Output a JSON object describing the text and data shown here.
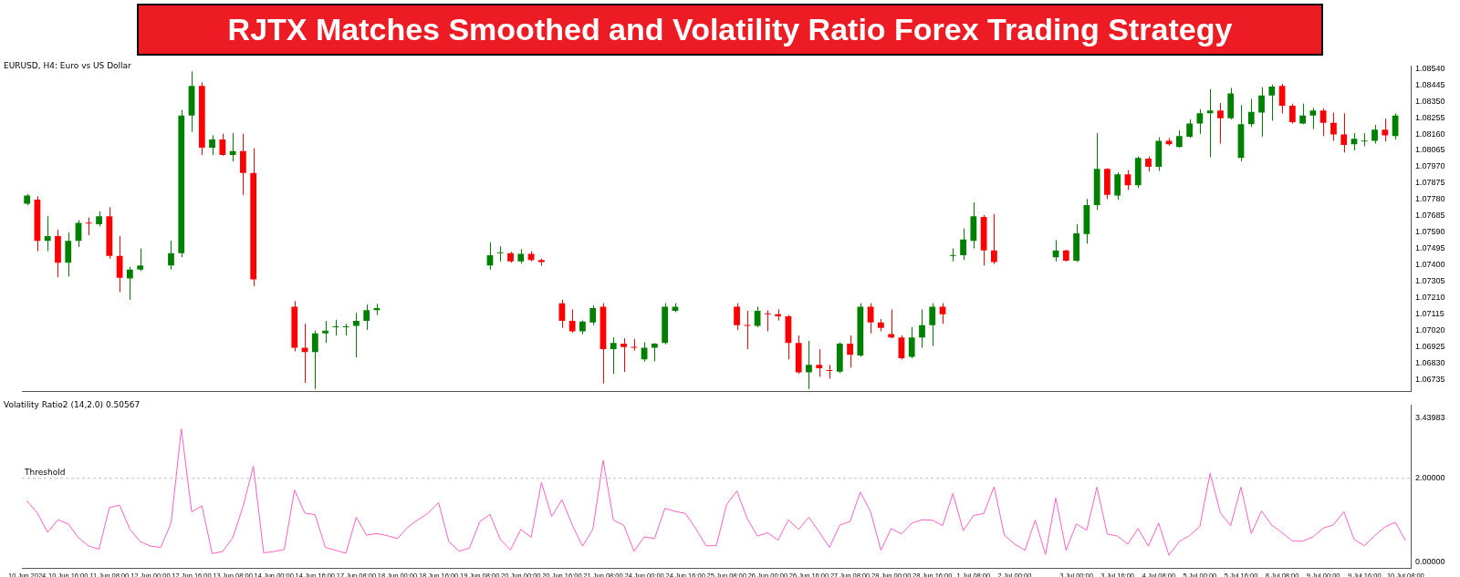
{
  "chart_data": [
    {
      "type": "candlestick",
      "title": "RJTX Matches Smoothed and Volatility Ratio Forex Trading Strategy",
      "subtitle": "EURUSD, H4: Euro vs US Dollar",
      "categories": [
        null,
        null,
        null,
        null,
        null,
        null,
        null,
        null,
        null,
        null,
        null,
        null,
        null,
        null,
        null,
        null,
        null,
        null,
        null,
        null,
        null,
        null,
        null,
        null,
        null,
        null,
        null,
        null,
        null,
        null,
        null,
        null,
        null,
        null,
        null,
        null,
        null,
        null,
        null,
        null,
        null,
        null,
        null,
        null,
        null,
        null,
        null,
        null,
        null,
        null,
        null,
        null,
        null,
        null,
        null,
        null,
        null,
        null,
        null,
        null,
        null,
        null,
        null,
        null,
        null,
        null,
        null,
        null,
        null,
        null,
        null,
        null,
        null,
        null,
        null,
        null,
        null,
        null,
        null,
        null,
        null,
        null,
        null,
        null,
        null,
        null,
        null,
        null,
        null,
        null,
        null,
        null,
        null,
        null,
        null,
        null,
        null,
        null,
        null,
        null,
        null,
        null,
        null,
        null,
        null,
        null,
        null,
        null,
        null,
        null,
        null,
        null,
        null,
        null,
        null,
        null,
        null,
        null,
        null,
        null,
        null,
        null,
        null,
        null,
        null,
        null,
        null,
        null,
        null,
        null,
        null,
        null,
        null,
        null,
        null
      ],
      "ohlc": [
        [
          1.07755,
          1.07811,
          1.07747,
          1.07803
        ],
        [
          1.07779,
          1.07799,
          1.0748,
          1.0754
        ],
        [
          1.0754,
          1.07683,
          1.0748,
          1.07568
        ],
        [
          1.07568,
          1.07604,
          1.07329,
          1.07413
        ],
        [
          1.07413,
          1.07588,
          1.07333,
          1.0754
        ],
        [
          1.0754,
          1.0766,
          1.07504,
          1.07644
        ],
        [
          1.07644,
          1.07675,
          1.07572,
          1.0764
        ],
        [
          1.07636,
          1.07711,
          1.07624,
          1.07683
        ],
        [
          1.07683,
          1.07735,
          1.07437,
          1.07452
        ],
        [
          1.07452,
          1.07568,
          1.07242,
          1.07325
        ],
        [
          1.07321,
          1.07389,
          1.07198,
          1.07373
        ],
        [
          1.07373,
          1.07496,
          1.07365,
          1.07397
        ],
        null,
        null,
        [
          1.07397,
          1.0754,
          1.07373,
          1.07468
        ],
        [
          1.07468,
          1.083,
          1.07445,
          1.08268
        ],
        [
          1.08268,
          1.08523,
          1.08173,
          1.0844
        ],
        [
          1.0844,
          1.08459,
          1.08038,
          1.08081
        ],
        [
          1.08081,
          1.08153,
          1.08038,
          1.08129
        ],
        [
          1.08129,
          1.08161,
          1.08034,
          1.08038
        ],
        [
          1.08038,
          1.08165,
          1.08002,
          1.08061
        ],
        [
          1.08061,
          1.08161,
          1.07807,
          1.07934
        ],
        [
          1.07934,
          1.08077,
          1.07277,
          1.07317
        ],
        null,
        null,
        null,
        [
          1.07158,
          1.0719,
          1.06899,
          1.06919
        ],
        [
          1.06919,
          1.07059,
          1.06716,
          1.06895
        ],
        [
          1.06895,
          1.07019,
          1.0668,
          1.07003
        ],
        [
          1.07003,
          1.07075,
          1.06947,
          1.07019
        ],
        [
          1.07039,
          1.07082,
          1.06991,
          1.07043
        ],
        [
          1.07039,
          1.07059,
          1.06991,
          1.07043
        ],
        [
          1.07047,
          1.07122,
          1.06863,
          1.07075
        ],
        [
          1.07075,
          1.0717,
          1.07023,
          1.07138
        ],
        [
          1.07138,
          1.07174,
          1.0711,
          1.0715
        ],
        null,
        null,
        null,
        null,
        null,
        null,
        null,
        null,
        null,
        null,
        [
          1.07397,
          1.07532,
          1.07373,
          1.07456
        ],
        [
          1.07468,
          1.07508,
          1.07421,
          1.07472
        ],
        [
          1.07468,
          1.07476,
          1.07413,
          1.07421
        ],
        [
          1.07421,
          1.07492,
          1.07409,
          1.07464
        ],
        [
          1.07464,
          1.0748,
          1.07421,
          1.07429
        ],
        [
          1.07429,
          1.07437,
          1.07397,
          1.07417
        ],
        null,
        [
          1.07178,
          1.07198,
          1.07035,
          1.07075
        ],
        [
          1.07075,
          1.07142,
          1.07007,
          1.07015
        ],
        [
          1.07015,
          1.07078,
          1.06999,
          1.07071
        ],
        [
          1.07066,
          1.07166,
          1.07051,
          1.0715
        ],
        [
          1.07158,
          1.07178,
          1.06712,
          1.06911
        ],
        [
          1.06911,
          1.06979,
          1.06768,
          1.06947
        ],
        [
          1.06943,
          1.06975,
          1.0678,
          1.06923
        ],
        [
          1.06923,
          1.06971,
          1.06903,
          1.06919
        ],
        [
          1.06852,
          1.06951,
          1.0684,
          1.06919
        ],
        [
          1.06919,
          1.06947,
          1.0684,
          1.06943
        ],
        [
          1.06947,
          1.07178,
          1.06939,
          1.07158
        ],
        [
          1.07134,
          1.07178,
          1.07126,
          1.07158
        ],
        null,
        null,
        null,
        null,
        null,
        [
          1.07158,
          1.07178,
          1.07023,
          1.07051
        ],
        [
          1.07051,
          1.07134,
          1.06911,
          1.07047
        ],
        [
          1.07047,
          1.07158,
          1.07039,
          1.07134
        ],
        [
          1.07118,
          1.07138,
          1.07015,
          1.07114
        ],
        [
          1.07114,
          1.07142,
          1.07078,
          1.07102
        ],
        [
          1.07102,
          1.0711,
          1.06852,
          1.06947
        ],
        [
          1.06947,
          1.06991,
          1.06768,
          1.06776
        ],
        [
          1.06776,
          1.06959,
          1.0668,
          1.0682
        ],
        [
          1.0682,
          1.06911,
          1.06752,
          1.068
        ],
        [
          1.06788,
          1.0682,
          1.0674,
          1.06784
        ],
        [
          1.0678,
          1.06951,
          1.06772,
          1.06943
        ],
        [
          1.06943,
          1.06991,
          1.06804,
          1.06879
        ],
        [
          1.06875,
          1.07178,
          1.06867,
          1.07158
        ],
        [
          1.07158,
          1.07178,
          1.07003,
          1.07066
        ],
        [
          1.07066,
          1.07086,
          1.07015,
          1.07035
        ],
        [
          1.06999,
          1.07142,
          1.06975,
          1.06979
        ],
        [
          1.06979,
          1.06991,
          1.06852,
          1.06859
        ],
        [
          1.06867,
          1.07039,
          1.06859,
          1.06979
        ],
        [
          1.06979,
          1.07142,
          1.06919,
          1.07051
        ],
        [
          1.07051,
          1.07178,
          1.06931,
          1.07158
        ],
        [
          1.07158,
          1.07178,
          1.07059,
          1.07114
        ],
        [
          1.07452,
          1.07496,
          1.07421,
          1.07456
        ],
        [
          1.07456,
          1.07612,
          1.07429,
          1.07548
        ],
        [
          1.0754,
          1.07763,
          1.07496,
          1.07683
        ],
        [
          1.07679,
          1.07691,
          1.07397,
          1.07484
        ],
        [
          1.07484,
          1.07695,
          1.07405,
          1.07417
        ],
        null,
        null,
        null,
        null,
        null,
        [
          1.07445,
          1.07544,
          1.07421,
          1.07484
        ],
        [
          1.07484,
          1.07488,
          1.07421,
          1.07425
        ],
        [
          1.07425,
          1.07636,
          1.07417,
          1.07584
        ],
        [
          1.0758,
          1.07783,
          1.07524,
          1.07747
        ],
        [
          1.07747,
          1.08165,
          1.07719,
          1.07958
        ],
        [
          1.07958,
          1.07962,
          1.07783,
          1.07807
        ],
        [
          1.07803,
          1.07938,
          1.07779,
          1.07926
        ],
        [
          1.07926,
          1.0795,
          1.07835,
          1.07862
        ],
        [
          1.07862,
          1.0803,
          1.07847,
          1.08022
        ],
        [
          1.08018,
          1.0803,
          1.07942,
          1.0797
        ],
        [
          1.0797,
          1.08141,
          1.07946,
          1.08121
        ],
        [
          1.08121,
          1.08137,
          1.08093,
          1.08101
        ],
        [
          1.08085,
          1.08181,
          1.08081,
          1.08149
        ],
        [
          1.08145,
          1.08245,
          1.08137,
          1.08221
        ],
        [
          1.08221,
          1.08304,
          1.08161,
          1.0828
        ],
        [
          1.0828,
          1.0842,
          1.08026,
          1.08296
        ],
        [
          1.08296,
          1.0834,
          1.08105,
          1.08252
        ],
        [
          1.08252,
          1.08428,
          1.08245,
          1.08396
        ],
        [
          1.08022,
          1.08328,
          1.08002,
          1.08217
        ],
        [
          1.08217,
          1.08364,
          1.08201,
          1.08288
        ],
        [
          1.08284,
          1.08432,
          1.08145,
          1.08384
        ],
        [
          1.08384,
          1.08447,
          1.08237,
          1.08436
        ],
        [
          1.0844,
          1.08451,
          1.0828,
          1.08324
        ],
        [
          1.08324,
          1.08336,
          1.08221,
          1.08229
        ],
        [
          1.08221,
          1.08336,
          1.08217,
          1.08268
        ],
        [
          1.08268,
          1.08312,
          1.08189,
          1.08296
        ],
        [
          1.08296,
          1.08308,
          1.08149,
          1.08225
        ],
        [
          1.08225,
          1.08284,
          1.08121,
          1.08157
        ],
        [
          1.08157,
          1.0828,
          1.08053,
          1.08097
        ],
        [
          1.08101,
          1.08165,
          1.08065,
          1.08133
        ],
        [
          1.08117,
          1.08165,
          1.08089,
          1.08121
        ],
        [
          1.08121,
          1.08213,
          1.08105,
          1.08185
        ],
        [
          1.08185,
          1.08249,
          1.08117,
          1.08153
        ],
        [
          1.08149,
          1.0828,
          1.08129,
          1.08268
        ],
        null
      ],
      "colors": [
        "#008000",
        "#ff0000",
        "#008000",
        "#ff0000",
        "#008000",
        "#008000",
        "#ff0000",
        "#008000",
        "#ff0000",
        "#ff0000",
        "#008000",
        "#008000",
        null,
        null,
        "#008000",
        "#008000",
        "#008000",
        "#ff0000",
        "#008000",
        "#ff0000",
        "#008000",
        "#ff0000",
        "#ff0000",
        null,
        null,
        null,
        "#ff0000",
        "#ff0000",
        "#008000",
        "#008000",
        "#008000",
        "#008000",
        "#008000",
        "#008000",
        "#008000",
        null,
        null,
        null,
        null,
        null,
        null,
        null,
        null,
        null,
        null,
        "#008000",
        "#008000",
        "#ff0000",
        "#008000",
        "#ff0000",
        "#ff0000",
        null,
        "#ff0000",
        "#ff0000",
        "#008000",
        "#008000",
        "#ff0000",
        "#008000",
        "#ff0000",
        "#ff0000",
        "#008000",
        "#008000",
        "#008000",
        "#008000",
        null,
        null,
        null,
        null,
        null,
        "#ff0000",
        "#ff0000",
        "#008000",
        "#ff0000",
        "#ff0000",
        "#ff0000",
        "#ff0000",
        "#008000",
        "#ff0000",
        "#ff0000",
        "#008000",
        "#ff0000",
        "#008000",
        "#ff0000",
        "#ff0000",
        "#ff0000",
        "#ff0000",
        "#008000",
        "#008000",
        "#008000",
        "#ff0000",
        "#008000",
        "#008000",
        "#008000",
        "#ff0000",
        "#ff0000",
        null,
        null,
        null,
        null,
        null,
        "#008000",
        "#ff0000",
        "#008000",
        "#008000",
        "#008000",
        "#ff0000",
        "#008000",
        "#ff0000",
        "#008000",
        "#ff0000",
        "#008000",
        "#ff0000",
        "#008000",
        "#008000",
        "#008000",
        "#008000",
        "#ff0000",
        "#008000",
        "#008000",
        "#008000",
        "#008000",
        "#008000",
        "#ff0000",
        "#ff0000",
        "#008000",
        "#008000",
        "#ff0000",
        "#ff0000",
        "#ff0000",
        "#008000",
        "#008000",
        "#008000",
        "#ff0000",
        "#008000",
        null
      ],
      "ylim": [
        1.06665,
        1.08555
      ],
      "yticks": [
        {
          "value": 1.0854,
          "label": "1.08540"
        },
        1.08445,
        {
          "value": 1.0835,
          "label": "1.08350"
        },
        1.08255,
        {
          "value": 1.0816,
          "label": "1.08160"
        },
        1.08065,
        {
          "value": 1.0797,
          "label": "1.07970"
        },
        1.07875,
        {
          "value": 1.0778,
          "label": "1.07780"
        },
        1.07685,
        {
          "value": 1.0759,
          "label": "1.07590"
        },
        1.07495,
        {
          "value": 1.074,
          "label": "1.07400"
        },
        1.07305,
        {
          "value": 1.0721,
          "label": "1.07210"
        },
        1.07115,
        {
          "value": 1.0702,
          "label": "1.07020"
        },
        1.06925,
        {
          "value": 1.0683,
          "label": "1.06830"
        },
        1.06735
      ],
      "tick_labels": "y"
    },
    {
      "type": "line",
      "title": "Volatility Ratio2 (14,2.0) 0.50567",
      "categories": [
        "10 Jun 2024",
        null,
        null,
        null,
        "10 Jun 16:00",
        null,
        null,
        null,
        "11 Jun 08:00",
        null,
        null,
        null,
        "12 Jun 00:00",
        null,
        null,
        null,
        "12 Jun 16:00",
        null,
        null,
        null,
        "13 Jun 08:00",
        null,
        null,
        null,
        "14 Jun 00:00",
        null,
        null,
        null,
        "14 Jun 16:00",
        null,
        null,
        null,
        "17 Jun 08:00",
        null,
        null,
        null,
        "18 Jun 00:00",
        null,
        null,
        null,
        "18 Jun 16:00",
        null,
        null,
        null,
        "19 Jun 08:00",
        null,
        null,
        null,
        "20 Jun 00:00",
        null,
        null,
        null,
        "20 Jun 16:00",
        null,
        null,
        null,
        "21 Jun 08:00",
        null,
        null,
        null,
        "24 Jun 00:00",
        null,
        null,
        null,
        "24 Jun 16:00",
        null,
        null,
        null,
        "25 Jun 08:00",
        null,
        null,
        null,
        "26 Jun 00:00",
        null,
        null,
        null,
        "26 Jun 16:00",
        null,
        null,
        null,
        "27 Jun 08:00",
        null,
        null,
        null,
        "28 Jun 00:00",
        null,
        null,
        null,
        "28 Jun 16:00",
        null,
        null,
        null,
        "1 Jul 08:00",
        null,
        null,
        null,
        "2 Jul 00:00",
        null,
        null,
        null,
        null,
        null,
        "3 Jul 00:00",
        null,
        null,
        null,
        "3 Jul 16:00",
        null,
        null,
        null,
        "4 Jul 08:00",
        null,
        null,
        null,
        "5 Jul 00:00",
        null,
        null,
        null,
        "5 Jul 16:00",
        null,
        null,
        null,
        "8 Jul 08:00",
        null,
        null,
        null,
        "9 Jul 00:00",
        null,
        null,
        null,
        "9 Jul 16:00",
        null,
        null,
        null,
        "10 Jul 08:00"
      ],
      "values": [
        1.46,
        1.17,
        0.71,
        1.01,
        0.91,
        0.58,
        0.38,
        0.31,
        1.3,
        1.36,
        0.78,
        0.49,
        0.38,
        0.35,
        0.93,
        3.18,
        1.2,
        1.34,
        0.2,
        0.25,
        0.58,
        1.33,
        2.29,
        0.22,
        0.25,
        0.3,
        1.72,
        1.17,
        1.13,
        0.35,
        0.28,
        0.21,
        1.07,
        0.64,
        0.68,
        0.63,
        0.56,
        0.83,
        1.01,
        1.17,
        1.42,
        0.49,
        0.26,
        0.33,
        0.96,
        1.14,
        0.54,
        0.29,
        0.78,
        0.59,
        1.9,
        1.09,
        1.49,
        0.88,
        0.38,
        0.78,
        2.43,
        1.0,
        0.88,
        0.26,
        0.6,
        0.56,
        1.28,
        1.21,
        1.16,
        0.8,
        0.39,
        0.39,
        1.37,
        1.7,
        1.04,
        0.62,
        0.7,
        0.52,
        1.01,
        0.78,
        1.07,
        0.72,
        0.35,
        0.88,
        0.97,
        1.67,
        1.2,
        0.28,
        0.8,
        0.67,
        0.93,
        1.01,
        1.0,
        0.87,
        1.64,
        0.75,
        1.11,
        1.16,
        1.8,
        0.64,
        0.43,
        0.28,
        1.0,
        0.18,
        1.53,
        0.28,
        0.91,
        0.76,
        1.79,
        0.67,
        0.62,
        0.43,
        0.8,
        0.38,
        0.93,
        0.16,
        0.49,
        0.63,
        0.85,
        2.12,
        1.17,
        0.87,
        1.79,
        0.68,
        1.22,
        0.88,
        0.7,
        0.5,
        0.5,
        0.6,
        0.81,
        0.89,
        1.2,
        0.54,
        0.39,
        0.63,
        0.84,
        0.95,
        0.51
      ],
      "color": "#ff5fc8",
      "ylim": [
        -0.14,
        3.75
      ],
      "yticks": [
        {
          "value": 0,
          "label": "0.00000"
        },
        {
          "value": 2,
          "label": "2.00000"
        },
        3.43983
      ],
      "ref_lines": [
        {
          "axis": "y",
          "value": 2,
          "label": "Threshold",
          "color": "#c0c0c0",
          "line_style": "dashed"
        }
      ]
    }
  ]
}
